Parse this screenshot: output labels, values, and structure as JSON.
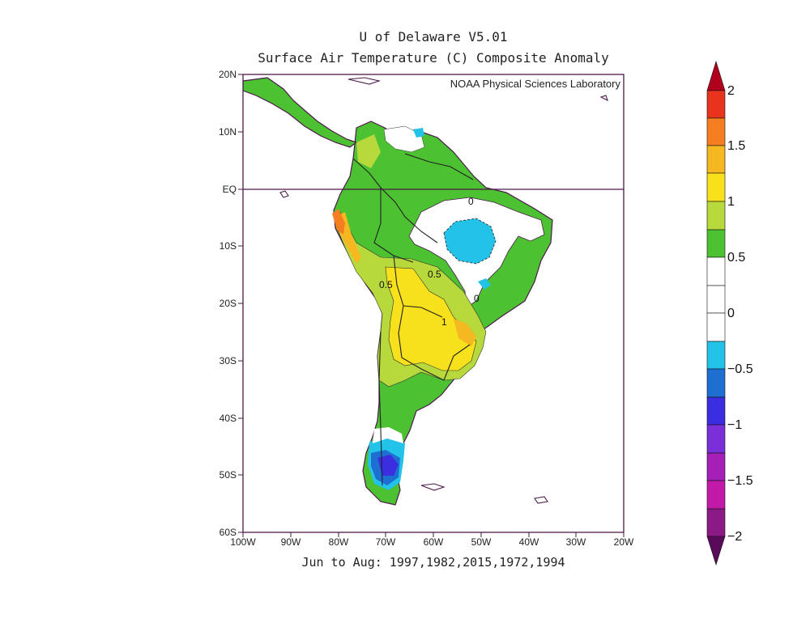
{
  "title": {
    "line1": "U of Delaware V5.01",
    "line2": "Surface Air Temperature (C) Composite Anomaly"
  },
  "credit": "NOAA Physical Sciences Laboratory",
  "footer": "Jun to Aug: 1997,1982,2015,1972,1994",
  "map": {
    "region": "South America",
    "lon_range": [
      -100,
      -20
    ],
    "lat_range": [
      -60,
      20
    ],
    "y_ticks": [
      "20N",
      "10N",
      "EQ",
      "10S",
      "20S",
      "30S",
      "40S",
      "50S",
      "60S"
    ],
    "x_ticks": [
      "100W",
      "90W",
      "80W",
      "70W",
      "60W",
      "50W",
      "40W",
      "30W",
      "20W"
    ],
    "contour_labels": [
      "0",
      "0.5",
      "0.5",
      "0",
      "1"
    ]
  },
  "colorbar": {
    "labels": [
      "2",
      "1.5",
      "1",
      "0.5",
      "0",
      "−0.5",
      "−1",
      "−1.5",
      "−2"
    ],
    "colors": {
      "above_2": "#b0001e",
      "1.75_2": "#e8331d",
      "1.5_1.75": "#f57f20",
      "1.25_1.5": "#f5b820",
      "1_1.25": "#f7e01c",
      "0.75_1": "#b7d93b",
      "0.5_0.75": "#4cc131",
      "0.25_0.5": "#ffffff",
      "0_0.25": "#ffffff",
      "-0.25_0": "#23c2e8",
      "-0.5_-0.25": "#1d6fd1",
      "-0.75_-0.5": "#3b2de0",
      "-1_-0.75": "#7a2fd8",
      "-1.25_-1": "#a51fb8",
      "-1.5_-1.25": "#8b1a87",
      "below_-2": "#5a0a5a"
    }
  }
}
